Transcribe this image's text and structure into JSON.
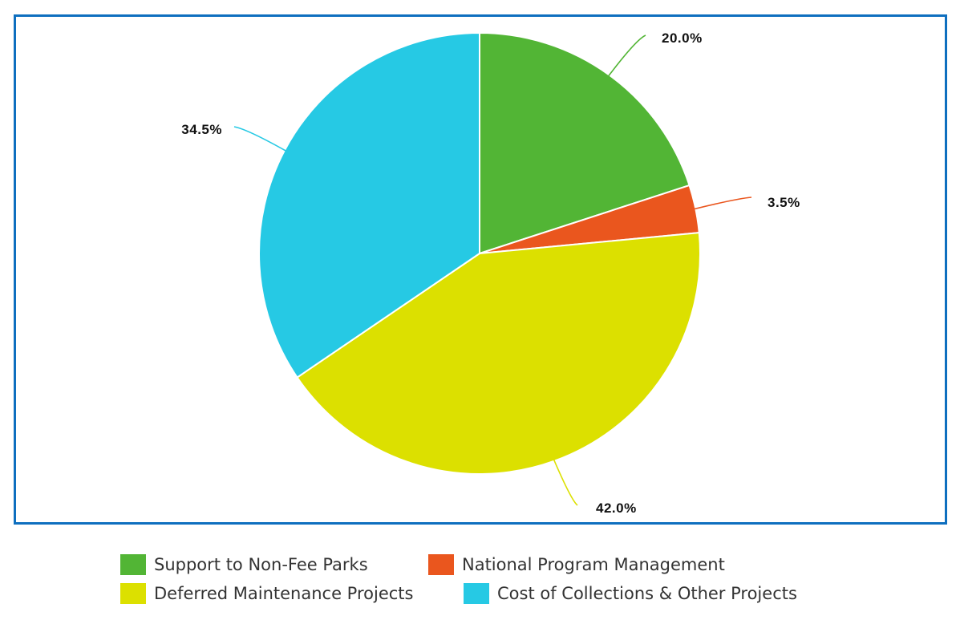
{
  "chart_data": {
    "type": "pie",
    "title": "",
    "categories": [
      "Support to Non-Fee Parks",
      "National Program Management",
      "Deferred Maintenance Projects",
      "Cost of Collections & Other Projects"
    ],
    "values": [
      20.0,
      3.5,
      42.0,
      34.5
    ],
    "labels": [
      "20.0%",
      "3.5%",
      "42.0%",
      "34.5%"
    ],
    "colors": [
      "#52b535",
      "#ea561e",
      "#dce000",
      "#26c9e4"
    ],
    "start_angle": "top (12 o'clock), clockwise",
    "legend_position": "bottom"
  },
  "legend": {
    "items": [
      {
        "label": "Support to Non-Fee Parks",
        "color": "#52b535"
      },
      {
        "label": "National Program Management",
        "color": "#ea561e"
      },
      {
        "label": "Deferred Maintenance Projects",
        "color": "#dce000"
      },
      {
        "label": "Cost of Collections & Other Projects",
        "color": "#26c9e4"
      }
    ]
  },
  "frame": {
    "border_color": "#0e6fbf"
  }
}
